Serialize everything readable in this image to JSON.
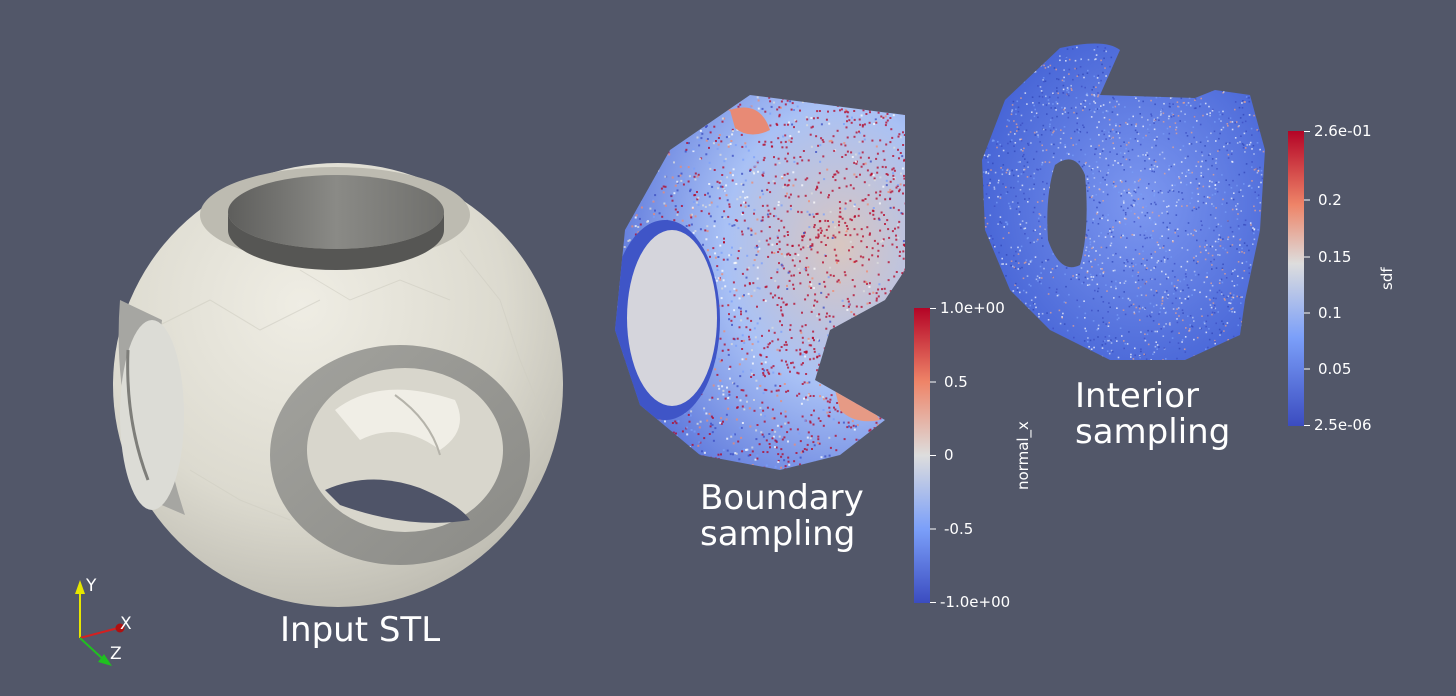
{
  "captions": {
    "input": "Input STL",
    "boundary_line1": "Boundary",
    "boundary_line2": "sampling",
    "interior_line1": "Interior",
    "interior_line2": "sampling"
  },
  "colorbar_normal": {
    "title": "normal_x",
    "ticks": [
      "1.0e+00",
      "0.5",
      "0",
      "-0.5",
      "-1.0e+00"
    ]
  },
  "colorbar_sdf": {
    "title": "sdf",
    "ticks": [
      "2.6e-01",
      "0.2",
      "0.15",
      "0.1",
      "0.05",
      "2.5e-06"
    ]
  },
  "axes": {
    "y": "Y",
    "x": "X",
    "z": "Z"
  },
  "colors": {
    "background": "#525769",
    "mesh": "#e4e2d8",
    "cool": "#3b4cc0",
    "neutral": "#dddddd",
    "warm": "#b40426"
  }
}
